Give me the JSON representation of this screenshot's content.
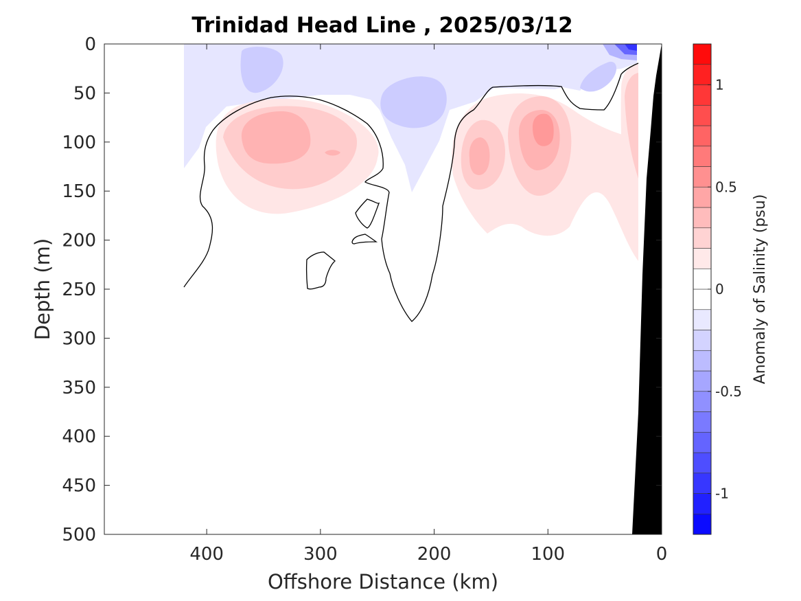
{
  "chart_data": {
    "type": "heatmap",
    "title": "Trinidad Head Line , 2025/03/12",
    "xlabel": "Offshore Distance (km)",
    "ylabel": "Depth (m)",
    "xlim": [
      490,
      0
    ],
    "ylim": [
      0,
      500
    ],
    "x_direction": "reversed",
    "y_direction": "reversed (depth increases downward)",
    "x_ticks": [
      400,
      300,
      200,
      100,
      0
    ],
    "y_ticks": [
      0,
      50,
      100,
      150,
      200,
      250,
      300,
      350,
      400,
      450,
      500
    ],
    "colorbar": {
      "label": "Anomaly of Salinity (psu)",
      "range": [
        -1.2,
        1.2
      ],
      "step": 0.1,
      "ticks": [
        -1,
        -0.5,
        0,
        0.5,
        1
      ],
      "colormap": "blue-white-red",
      "negative_color": "#0000ff",
      "zero_color": "#ffffff",
      "positive_color": "#ff0000"
    },
    "zero_contour": true,
    "bathymetry_color": "#000000",
    "features": [
      {
        "kind": "positive anomaly",
        "center_km": 330,
        "center_depth_m": 100,
        "peak_psu": 0.3
      },
      {
        "kind": "positive anomaly",
        "center_km": 155,
        "center_depth_m": 120,
        "peak_psu": 0.3
      },
      {
        "kind": "positive anomaly",
        "center_km": 105,
        "center_depth_m": 85,
        "peak_psu": 0.4
      },
      {
        "kind": "positive anomaly",
        "center_km": 20,
        "center_depth_m": 120,
        "peak_psu": 0.3
      },
      {
        "kind": "negative anomaly",
        "center_km": 380,
        "center_depth_m": 25,
        "peak_psu": -0.2
      },
      {
        "kind": "negative anomaly",
        "center_km": 240,
        "center_depth_m": 60,
        "peak_psu": -0.2
      },
      {
        "kind": "negative anomaly",
        "center_km": 50,
        "center_depth_m": 40,
        "peak_psu": -0.2
      },
      {
        "kind": "negative anomaly",
        "center_km": 35,
        "center_depth_m": 5,
        "peak_psu": -0.8
      }
    ]
  }
}
